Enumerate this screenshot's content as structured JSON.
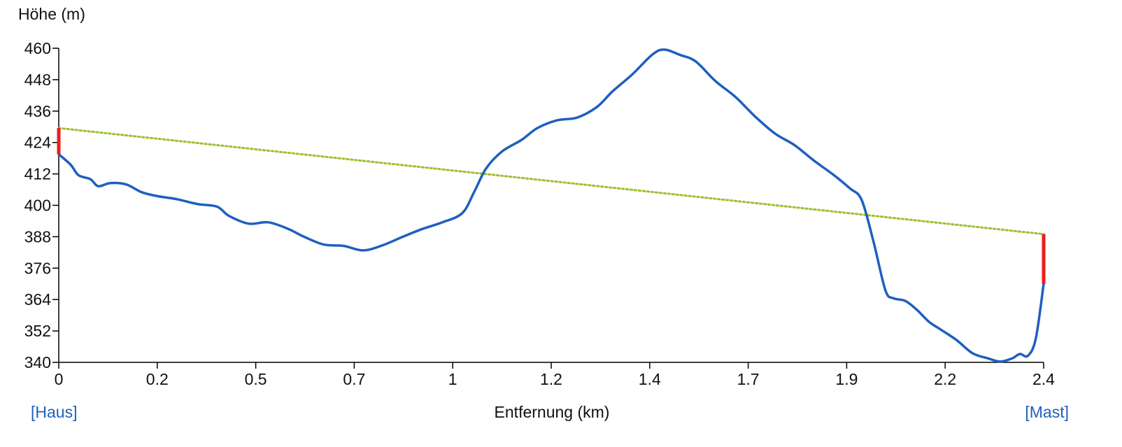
{
  "chart_data": {
    "type": "line",
    "title": "",
    "ylabel": "Höhe (m)",
    "xlabel": "Entfernung (km)",
    "xlim": [
      0,
      2.49
    ],
    "ylim": [
      340,
      460
    ],
    "x_ticks": [
      {
        "value": 0,
        "label": "0"
      },
      {
        "value": 0.249,
        "label": "0.2"
      },
      {
        "value": 0.498,
        "label": "0.5"
      },
      {
        "value": 0.747,
        "label": "0.7"
      },
      {
        "value": 0.996,
        "label": "1"
      },
      {
        "value": 1.245,
        "label": "1.2"
      },
      {
        "value": 1.494,
        "label": "1.4"
      },
      {
        "value": 1.743,
        "label": "1.7"
      },
      {
        "value": 1.992,
        "label": "1.9"
      },
      {
        "value": 2.241,
        "label": "2.2"
      },
      {
        "value": 2.49,
        "label": "2.4"
      }
    ],
    "y_ticks": [
      {
        "value": 340,
        "label": "340"
      },
      {
        "value": 352,
        "label": "352"
      },
      {
        "value": 364,
        "label": "364"
      },
      {
        "value": 376,
        "label": "376"
      },
      {
        "value": 388,
        "label": "388"
      },
      {
        "value": 400,
        "label": "400"
      },
      {
        "value": 412,
        "label": "412"
      },
      {
        "value": 424,
        "label": "424"
      },
      {
        "value": 436,
        "label": "436"
      },
      {
        "value": 448,
        "label": "448"
      },
      {
        "value": 460,
        "label": "460"
      }
    ],
    "grid": false,
    "series": [
      {
        "role": "terrain-profile",
        "color": "#1f5fbf",
        "points": [
          [
            0.0,
            419.5
          ],
          [
            0.03,
            415.5
          ],
          [
            0.05,
            411.5
          ],
          [
            0.08,
            410.0
          ],
          [
            0.1,
            407.3
          ],
          [
            0.13,
            408.5
          ],
          [
            0.17,
            408.0
          ],
          [
            0.21,
            405.0
          ],
          [
            0.25,
            403.5
          ],
          [
            0.3,
            402.3
          ],
          [
            0.35,
            400.5
          ],
          [
            0.4,
            399.5
          ],
          [
            0.43,
            396.0
          ],
          [
            0.48,
            393.0
          ],
          [
            0.53,
            393.5
          ],
          [
            0.58,
            391.0
          ],
          [
            0.62,
            388.0
          ],
          [
            0.67,
            385.0
          ],
          [
            0.72,
            384.5
          ],
          [
            0.77,
            382.8
          ],
          [
            0.82,
            384.8
          ],
          [
            0.87,
            388.0
          ],
          [
            0.92,
            391.0
          ],
          [
            0.97,
            393.5
          ],
          [
            1.02,
            397.0
          ],
          [
            1.05,
            405.0
          ],
          [
            1.08,
            414.0
          ],
          [
            1.12,
            420.5
          ],
          [
            1.17,
            425.0
          ],
          [
            1.21,
            429.5
          ],
          [
            1.26,
            432.5
          ],
          [
            1.31,
            433.5
          ],
          [
            1.36,
            437.5
          ],
          [
            1.4,
            443.5
          ],
          [
            1.45,
            450.0
          ],
          [
            1.5,
            457.5
          ],
          [
            1.53,
            459.5
          ],
          [
            1.57,
            457.5
          ],
          [
            1.61,
            455.0
          ],
          [
            1.66,
            447.5
          ],
          [
            1.71,
            441.5
          ],
          [
            1.76,
            434.0
          ],
          [
            1.81,
            427.5
          ],
          [
            1.86,
            423.0
          ],
          [
            1.91,
            417.0
          ],
          [
            1.96,
            411.5
          ],
          [
            2.0,
            406.5
          ],
          [
            2.03,
            402.0
          ],
          [
            2.06,
            386.0
          ],
          [
            2.09,
            367.5
          ],
          [
            2.11,
            364.5
          ],
          [
            2.14,
            363.5
          ],
          [
            2.17,
            360.0
          ],
          [
            2.2,
            355.5
          ],
          [
            2.23,
            352.5
          ],
          [
            2.27,
            348.5
          ],
          [
            2.31,
            343.5
          ],
          [
            2.35,
            341.5
          ],
          [
            2.38,
            340.3
          ],
          [
            2.41,
            341.5
          ],
          [
            2.43,
            343.2
          ],
          [
            2.45,
            342.5
          ],
          [
            2.47,
            349.0
          ],
          [
            2.49,
            370.0
          ]
        ]
      },
      {
        "role": "line-of-sight",
        "color": "#9cc131",
        "style": "dotted",
        "points": [
          [
            0.0,
            429.5
          ],
          [
            2.49,
            389.0
          ]
        ]
      }
    ],
    "endpoint_markers": [
      {
        "x": 0.0,
        "y_from": 419.5,
        "y_to": 429.5,
        "color": "#ee1c1c"
      },
      {
        "x": 2.49,
        "y_from": 370.0,
        "y_to": 389.0,
        "color": "#ee1c1c"
      }
    ],
    "endpoints": {
      "start_label": "[Haus]",
      "end_label": "[Mast]",
      "color": "#1f5fbf"
    }
  }
}
